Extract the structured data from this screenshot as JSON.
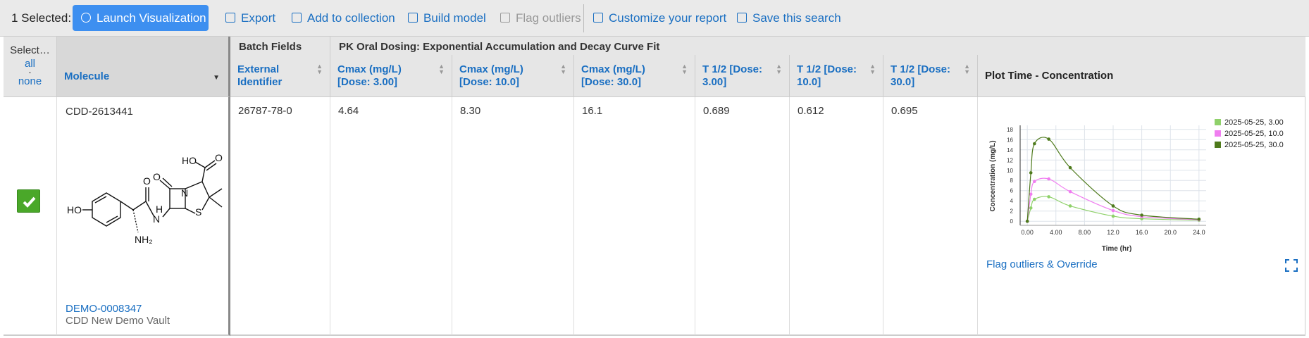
{
  "toolbar": {
    "selected": "1 Selected:",
    "buttons": [
      "Launch Visualization",
      "Export",
      "Add to collection",
      "Build model",
      "Flag outliers",
      "Customize your report",
      "Save this search"
    ]
  },
  "header": {
    "select": "Select…",
    "all": "all",
    "separator": "·",
    "none": "none",
    "molecule": "Molecule",
    "groups": [
      "Batch Fields",
      "PK Oral Dosing: Exponential Accumulation and Decay Curve Fit"
    ],
    "columns": [
      "External Identifier",
      "Cmax (mg/L) [Dose: 3.00]",
      "Cmax (mg/L) [Dose: 10.0]",
      "Cmax (mg/L) [Dose: 30.0]",
      "T 1/2 [Dose: 3.00]",
      "T 1/2 [Dose: 10.0]",
      "T 1/2 [Dose: 30.0]",
      "Plot Time - Concentration"
    ]
  },
  "row": {
    "id": "CDD-2613441",
    "link": "DEMO-0008347",
    "vault": "CDD New Demo Vault",
    "cells": [
      "26787-78-0",
      "4.64",
      "8.30",
      "16.1",
      "0.689",
      "0.612",
      "0.695"
    ],
    "structure_labels": [
      "HO",
      "O",
      "H",
      "N",
      "NH₂",
      "O",
      "N",
      "S",
      "HO",
      "O"
    ],
    "flag": "Flag outliers & Override"
  },
  "chart_data": {
    "type": "line",
    "x_label": "Time (hr)",
    "y_label": "Concentration (mg/L)",
    "x": [
      0,
      0.5,
      1,
      3,
      6,
      12,
      16,
      24
    ],
    "xlim": [
      -1,
      25
    ],
    "ylim": [
      -0.8,
      18.8
    ],
    "xticks": [
      {
        "value": 0,
        "label": "0.00"
      },
      {
        "value": 4,
        "label": "4.00"
      },
      {
        "value": 8,
        "label": "8.00"
      },
      {
        "value": 12,
        "label": "12.0"
      },
      {
        "value": 16,
        "label": "16.0"
      },
      {
        "value": 20,
        "label": "20.0"
      },
      {
        "value": 24,
        "label": "24.0"
      }
    ],
    "yticks": [
      0,
      2,
      4,
      6,
      8,
      10,
      12,
      14,
      16,
      18
    ],
    "grid": true,
    "legend": "top-right",
    "series": [
      {
        "name": "2025-05-25, 3.00",
        "color": "#8fd16a",
        "values": [
          0,
          2.6,
          4.3,
          4.8,
          3.0,
          1.0,
          0.5,
          0.2
        ]
      },
      {
        "name": "2025-05-25, 10.0",
        "color": "#f07ef0",
        "values": [
          0,
          5.3,
          7.8,
          8.3,
          5.8,
          2.1,
          0.9,
          0.3
        ]
      },
      {
        "name": "2025-05-25, 30.0",
        "color": "#4e7a1c",
        "values": [
          0,
          9.5,
          15.2,
          16.1,
          10.5,
          3.0,
          1.2,
          0.4
        ]
      }
    ]
  }
}
